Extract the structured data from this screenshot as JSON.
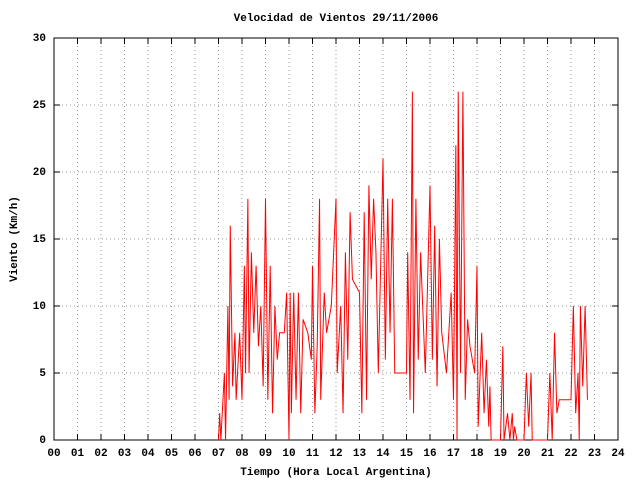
{
  "chart_data": {
    "type": "line",
    "title": "Velocidad de Vientos 29/11/2006",
    "xlabel": "Tiempo (Hora Local Argentina)",
    "ylabel": "Viento (Km/h)",
    "xlim": [
      0,
      24
    ],
    "ylim": [
      0,
      30
    ],
    "xticks": [
      {
        "value": 0,
        "label": "00"
      },
      {
        "value": 1,
        "label": "01"
      },
      {
        "value": 2,
        "label": "02"
      },
      {
        "value": 3,
        "label": "03"
      },
      {
        "value": 4,
        "label": "04"
      },
      {
        "value": 5,
        "label": "05"
      },
      {
        "value": 6,
        "label": "06"
      },
      {
        "value": 7,
        "label": "07"
      },
      {
        "value": 8,
        "label": "08"
      },
      {
        "value": 9,
        "label": "09"
      },
      10,
      11,
      12,
      13,
      14,
      15,
      16,
      17,
      18,
      19,
      20,
      21,
      22,
      23,
      24
    ],
    "yticks": [
      0,
      5,
      10,
      15,
      20,
      25,
      30
    ],
    "grid": true,
    "series": [
      {
        "color": "#ff0000",
        "x": [
          7.0,
          7.05,
          7.1,
          7.25,
          7.3,
          7.4,
          7.45,
          7.5,
          7.6,
          7.7,
          7.75,
          7.9,
          8.0,
          8.1,
          8.15,
          8.25,
          8.3,
          8.4,
          8.5,
          8.6,
          8.7,
          8.8,
          8.9,
          9.0,
          9.1,
          9.2,
          9.3,
          9.4,
          9.5,
          9.6,
          9.7,
          9.8,
          9.9,
          10.0,
          10.05,
          10.1,
          10.2,
          10.3,
          10.4,
          10.5,
          10.6,
          10.8,
          10.95,
          11.0,
          11.1,
          11.2,
          11.3,
          11.35,
          11.5,
          11.6,
          11.8,
          12.0,
          12.05,
          12.2,
          12.3,
          12.4,
          12.5,
          12.6,
          12.7,
          13.0,
          13.1,
          13.2,
          13.3,
          13.4,
          13.5,
          13.6,
          13.7,
          13.8,
          14.0,
          14.1,
          14.2,
          14.3,
          14.4,
          14.5,
          15.0,
          15.05,
          15.15,
          15.25,
          15.3,
          15.4,
          15.5,
          15.6,
          15.8,
          16.0,
          16.1,
          16.2,
          16.3,
          16.4,
          16.5,
          16.7,
          16.9,
          17.0,
          17.1,
          17.15,
          17.2,
          17.3,
          17.4,
          17.5,
          17.6,
          17.7,
          17.9,
          18.0,
          18.05,
          18.2,
          18.3,
          18.4,
          18.5,
          18.55,
          18.6,
          19.0,
          19.1,
          19.15,
          19.3,
          19.4,
          19.5,
          19.55,
          19.6,
          19.7,
          20.0,
          20.1,
          20.2,
          20.3,
          20.35,
          20.4,
          21.0,
          21.1,
          21.2,
          21.3,
          21.4,
          21.5,
          22.0,
          22.1,
          22.2,
          22.3,
          22.35,
          22.4,
          22.5,
          22.6,
          22.7
        ],
        "values": [
          0,
          2,
          0,
          5,
          0,
          10,
          3,
          16,
          4,
          8,
          3,
          8,
          3,
          13,
          5,
          18,
          5,
          14,
          8,
          13,
          7,
          10,
          4,
          18,
          3,
          13,
          2,
          10,
          6,
          8,
          8,
          8,
          11,
          0,
          11,
          2,
          11,
          3,
          11,
          2,
          9,
          8,
          6,
          13,
          2,
          7,
          18,
          3,
          11,
          8,
          10,
          18,
          5,
          10,
          2,
          14,
          6,
          17,
          12,
          11,
          2,
          17,
          3,
          19,
          12,
          18,
          14,
          5,
          21,
          6,
          18,
          8,
          18,
          5,
          5,
          14,
          3,
          26,
          2,
          18,
          6,
          14,
          5,
          19,
          6,
          16,
          4,
          15,
          8,
          5,
          11,
          3,
          22,
          0,
          26,
          5,
          26,
          3,
          9,
          7,
          5,
          13,
          1,
          8,
          2,
          6,
          1,
          4,
          0,
          0,
          7,
          0,
          2,
          0,
          2,
          0,
          1,
          0,
          0,
          5,
          1,
          5,
          0,
          0,
          0,
          5,
          0,
          8,
          2,
          3,
          3,
          10,
          2,
          5,
          0,
          10,
          4,
          10,
          3
        ]
      }
    ]
  }
}
